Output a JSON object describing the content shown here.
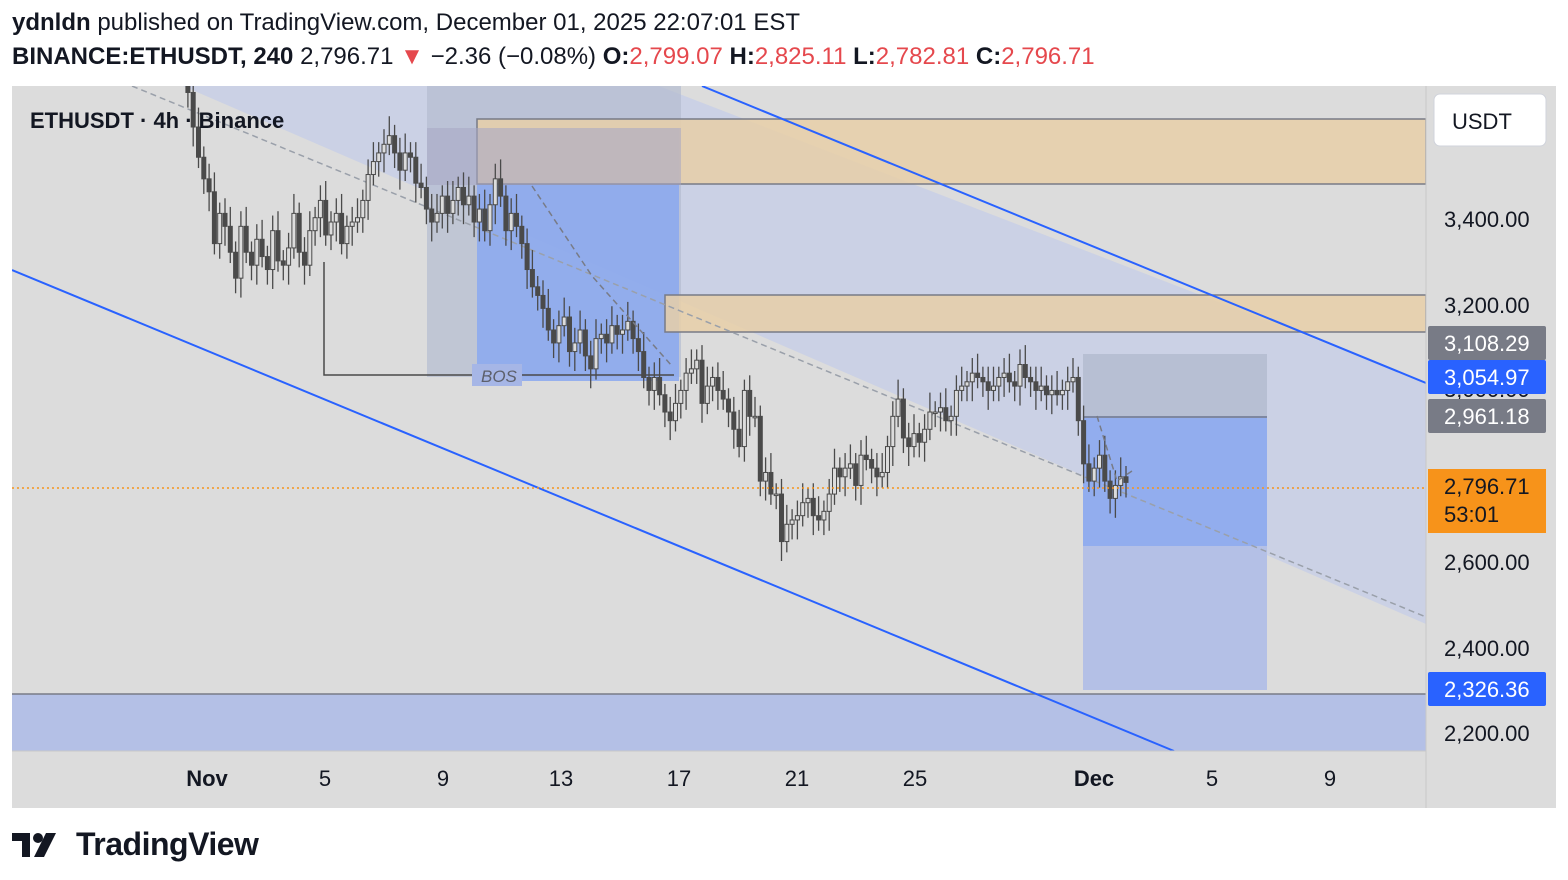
{
  "header": {
    "author": "ydnldn",
    "published_text": " published on TradingView.com, December 01, 2025 22:07:01 EST",
    "symbol": "BINANCE:ETHUSDT, 240",
    "last": "2,796.71",
    "change": "−2.36 (−0.08%)",
    "o_label": "O:",
    "o_value": "2,799.07",
    "h_label": "H:",
    "h_value": "2,825.11",
    "l_label": "L:",
    "l_value": "2,782.81",
    "c_label": "C:",
    "c_value": "2,796.71"
  },
  "chart_title": "ETHUSDT · 4h · Binance",
  "currency_button": "USDT",
  "annotations": {
    "bos": "BOS"
  },
  "colors": {
    "chart_bg": "#dcdcdc",
    "candle": "#4a4a4a",
    "channel_line": "#2962ff",
    "supply_zone": "#e8cfa8",
    "demand_zone": "#b4c0e6",
    "current_price": "#f7931a",
    "label_blue": "#2962ff",
    "label_gray": "#787b86"
  },
  "chart_data": {
    "type": "candlestick",
    "title": "ETHUSDT · 4h · Binance",
    "y_axis_ticks": [
      "3,400.00",
      "3,200.00",
      "3,000.00",
      "2,600.00",
      "2,400.00",
      "2,200.00"
    ],
    "x_axis_ticks": [
      "Nov",
      "5",
      "9",
      "13",
      "17",
      "21",
      "25",
      "Dec",
      "5",
      "9"
    ],
    "ylim": [
      2175,
      3715
    ],
    "price_labels": [
      {
        "value": "3,108.29",
        "kind": "gray"
      },
      {
        "value": "3,054.97",
        "kind": "blue"
      },
      {
        "value": "2,961.18",
        "kind": "gray"
      },
      {
        "value": "2,326.36",
        "kind": "blue"
      }
    ],
    "current_price": {
      "value": "2,796.71",
      "countdown": "53:01"
    },
    "zones": [
      {
        "kind": "supply",
        "top": 3620,
        "bottom": 3470
      },
      {
        "kind": "supply",
        "top": 3225,
        "bottom": 3140
      }
    ],
    "demand_zone": {
      "top": 2326.36
    },
    "series": [
      {
        "values_close": [
          3850,
          3830,
          3760,
          3700,
          3620,
          3550,
          3500,
          3470,
          3350,
          3420,
          3390,
          3330,
          3270,
          3390,
          3330,
          3300,
          3360,
          3320,
          3290,
          3380,
          3310,
          3300,
          3340,
          3420,
          3330,
          3300,
          3380,
          3410,
          3450,
          3370,
          3400,
          3420,
          3350,
          3390,
          3400,
          3410,
          3450,
          3510,
          3540,
          3560,
          3580,
          3600,
          3560,
          3520,
          3560,
          3550,
          3490,
          3480,
          3430,
          3400,
          3420,
          3460,
          3420,
          3450,
          3480,
          3440,
          3460,
          3400,
          3430,
          3380,
          3440,
          3500,
          3460,
          3380,
          3420,
          3390,
          3350,
          3290,
          3250,
          3230,
          3200,
          3150,
          3120,
          3160,
          3180,
          3100,
          3120,
          3150,
          3090,
          3060,
          3130,
          3140,
          3120,
          3160,
          3140,
          3150,
          3170,
          3130,
          3100,
          3040,
          3010,
          3040,
          3000,
          2960,
          2940,
          2980,
          3010,
          3050,
          3060,
          3080,
          2980,
          3020,
          3040,
          3010,
          2990,
          2960,
          2920,
          2880,
          3010,
          2950,
          2950,
          2800,
          2820,
          2770,
          2770,
          2660,
          2700,
          2710,
          2720,
          2750,
          2760,
          2720,
          2710,
          2730,
          2770,
          2830,
          2810,
          2830,
          2840,
          2790,
          2860,
          2850,
          2830,
          2810,
          2820,
          2880,
          2950,
          2990,
          2900,
          2880,
          2910,
          2890,
          2920,
          2960,
          2960,
          2970,
          2940,
          2950,
          3010,
          3020,
          3030,
          3050,
          3040,
          3030,
          3010,
          3020,
          3040,
          3050,
          3030,
          3020,
          3070,
          3040,
          3030,
          3010,
          3020,
          3000,
          3010,
          3000,
          3010,
          3030,
          3040,
          2940,
          2840,
          2800,
          2830,
          2860,
          2800,
          2760,
          2790,
          2810,
          2797
        ]
      }
    ]
  }
}
